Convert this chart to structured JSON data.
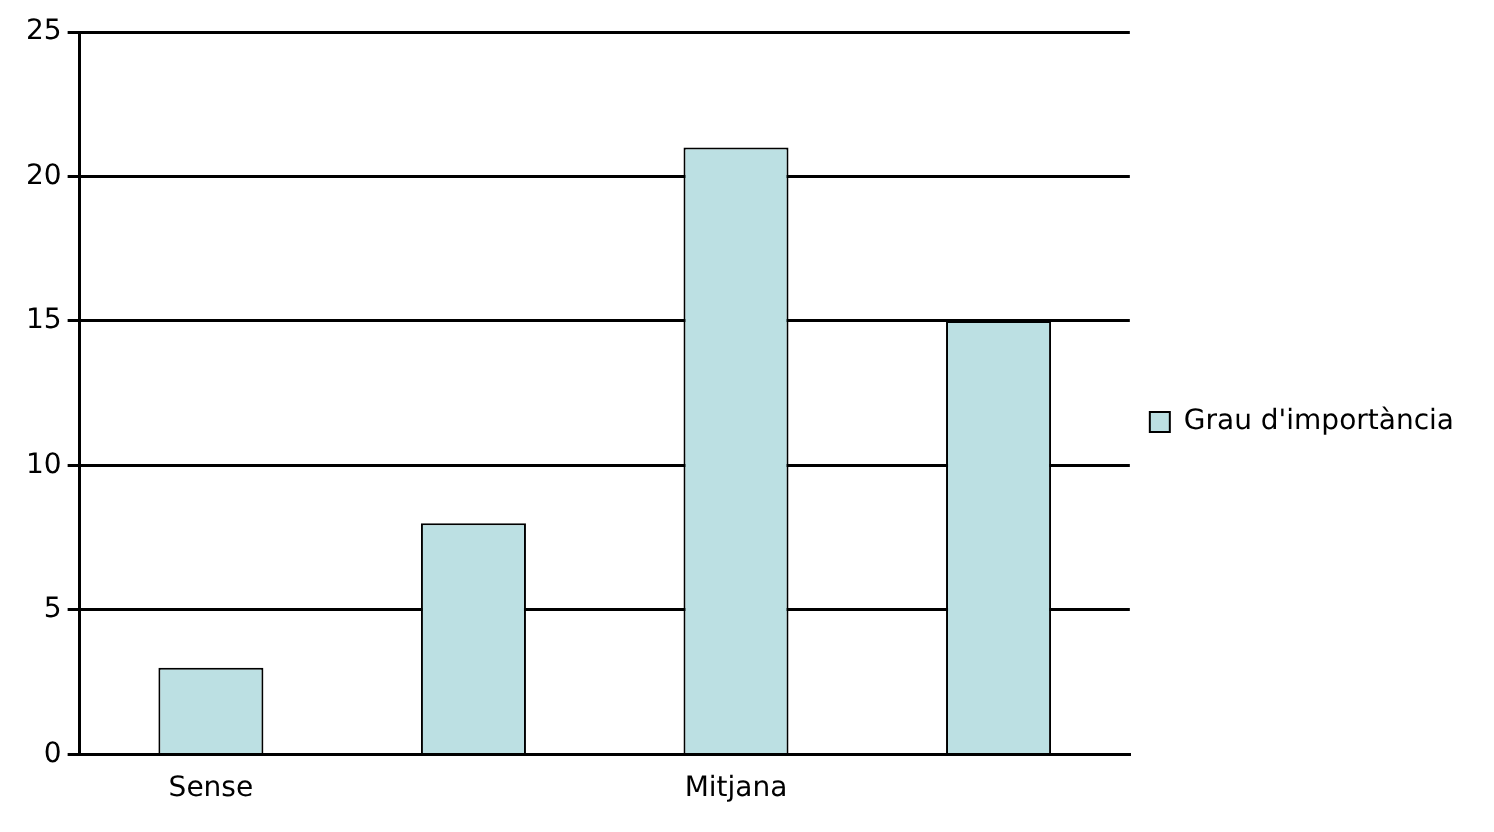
{
  "chart_data": {
    "type": "bar",
    "categories": [
      "Sense",
      null,
      "Mitjana",
      null
    ],
    "series": [
      {
        "name": "Grau d'importància",
        "color": "#bce0e3",
        "values": [
          3,
          8,
          21,
          15
        ]
      }
    ],
    "ylim": [
      0,
      25
    ],
    "yticks": [
      0,
      5,
      10,
      15,
      20,
      25
    ],
    "grid": "y",
    "legend": "right"
  }
}
